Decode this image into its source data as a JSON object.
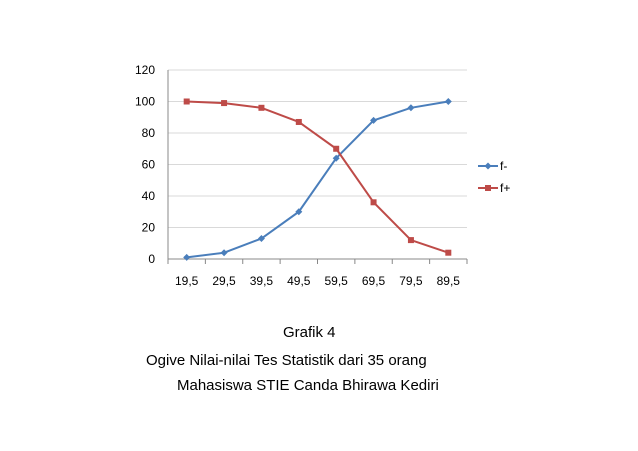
{
  "chart_data": {
    "type": "line",
    "categories": [
      "19,5",
      "29,5",
      "39,5",
      "49,5",
      "59,5",
      "69,5",
      "79,5",
      "89,5"
    ],
    "series": [
      {
        "name": "f-",
        "color": "#4a7ebb",
        "marker": "diamond",
        "values": [
          1,
          4,
          13,
          30,
          64,
          88,
          96,
          100
        ]
      },
      {
        "name": "f+",
        "color": "#be4b48",
        "marker": "square",
        "values": [
          100,
          99,
          96,
          87,
          70,
          36,
          12,
          4
        ]
      }
    ],
    "yticks": [
      "0",
      "20",
      "40",
      "60",
      "80",
      "100",
      "120"
    ],
    "ylim": [
      0,
      120
    ],
    "grid": true,
    "legend_position": "right"
  },
  "caption": {
    "line1": "Grafik 4",
    "line2": "Ogive Nilai-nilai Tes Statistik dari 35 orang",
    "line3": "Mahasiswa STIE Canda Bhirawa Kediri"
  }
}
